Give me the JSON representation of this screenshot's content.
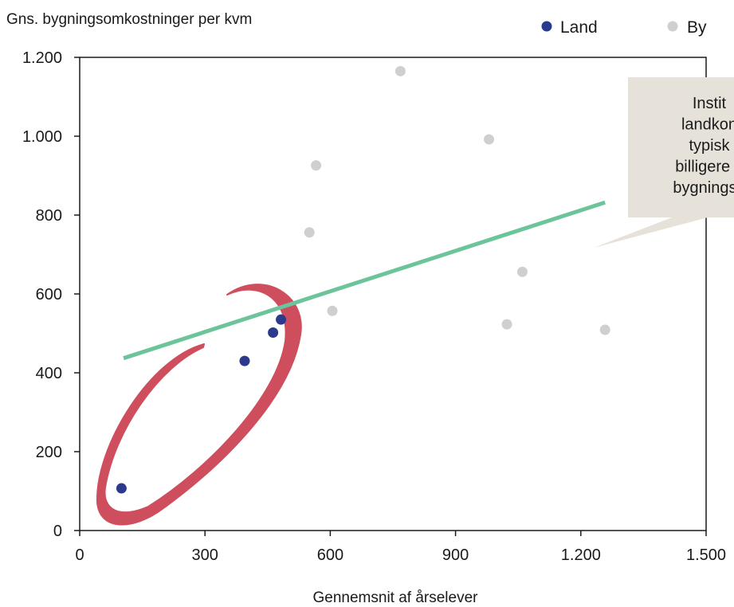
{
  "chart_data": {
    "type": "scatter",
    "ylabel": "Gns. bygningsomkostninger per kvm",
    "xlabel": "Gennemsnit af årselever",
    "xlim": [
      0,
      1500
    ],
    "ylim": [
      0,
      1200
    ],
    "x_ticks": [
      0,
      300,
      600,
      900,
      1200,
      1500
    ],
    "x_tick_labels": [
      "0",
      "300",
      "600",
      "900",
      "1.200",
      "1.500"
    ],
    "y_ticks": [
      0,
      200,
      400,
      600,
      800,
      1000,
      1200
    ],
    "y_tick_labels": [
      "0",
      "200",
      "400",
      "600",
      "800",
      "1.000",
      "1.200"
    ],
    "grid": false,
    "legend_position": "top-right",
    "series": [
      {
        "name": "Land",
        "color": "#2b3a8c",
        "points": [
          {
            "x": 100,
            "y": 107
          },
          {
            "x": 395,
            "y": 430
          },
          {
            "x": 463,
            "y": 502
          },
          {
            "x": 482,
            "y": 535
          }
        ]
      },
      {
        "name": "By",
        "color": "#cfcfcf",
        "points": [
          {
            "x": 768,
            "y": 1165
          },
          {
            "x": 980,
            "y": 992
          },
          {
            "x": 566,
            "y": 926
          },
          {
            "x": 550,
            "y": 756
          },
          {
            "x": 1060,
            "y": 656
          },
          {
            "x": 605,
            "y": 557
          },
          {
            "x": 1023,
            "y": 523
          },
          {
            "x": 1258,
            "y": 509
          }
        ]
      }
    ],
    "trendline": {
      "color": "#6cc49a",
      "from": {
        "x": 105,
        "y": 437
      },
      "to": {
        "x": 1258,
        "y": 832
      }
    },
    "annotation": {
      "lines": [
        "Instit",
        "landkon",
        "typisk",
        "billigere p",
        "bygningso"
      ],
      "background": "#e6e2da"
    },
    "highlight_color": "#cf4e5e"
  }
}
